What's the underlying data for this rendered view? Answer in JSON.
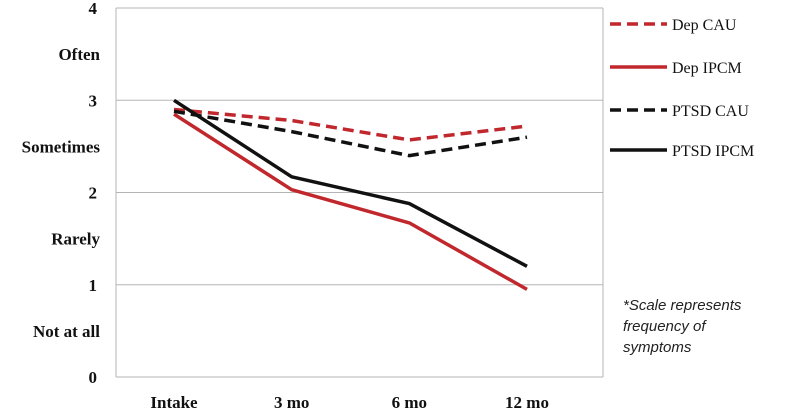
{
  "chart_data": {
    "type": "line",
    "categories": [
      "Intake",
      "3 mo",
      "6 mo",
      "12 mo"
    ],
    "ylim": [
      0,
      4
    ],
    "y_ticks": [
      0,
      1,
      2,
      3,
      4
    ],
    "y_tick_words": [
      {
        "value": 0.5,
        "label": "Not at all"
      },
      {
        "value": 1.5,
        "label": "Rarely"
      },
      {
        "value": 2.5,
        "label": "Sometimes"
      },
      {
        "value": 3.5,
        "label": "Often"
      }
    ],
    "grid": "horizontal",
    "legend_position": "right",
    "series": [
      {
        "name": "Dep CAU",
        "values": [
          2.9,
          2.78,
          2.57,
          2.72
        ],
        "color": "#c0282d",
        "dash": "dashed"
      },
      {
        "name": "Dep IPCM",
        "values": [
          2.85,
          2.03,
          1.67,
          0.95
        ],
        "color": "#c0282d",
        "dash": "solid"
      },
      {
        "name": "PTSD CAU",
        "values": [
          2.88,
          2.66,
          2.4,
          2.6
        ],
        "color": "#111111",
        "dash": "dashed"
      },
      {
        "name": "PTSD IPCM",
        "values": [
          3.0,
          2.17,
          1.88,
          1.2
        ],
        "color": "#111111",
        "dash": "solid"
      }
    ],
    "note": [
      "*Scale represents",
      "frequency of",
      "symptoms"
    ]
  }
}
